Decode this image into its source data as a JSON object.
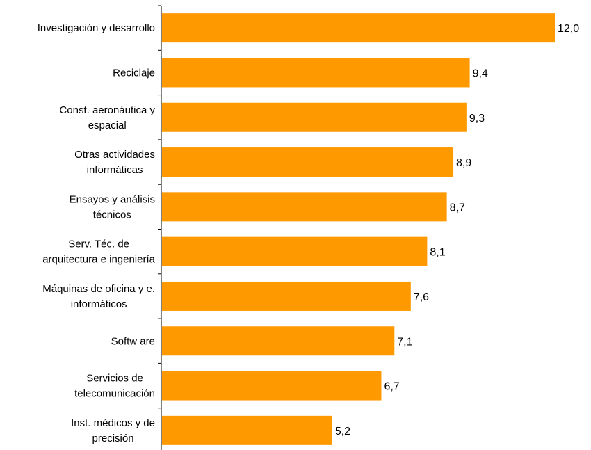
{
  "chart_data": {
    "type": "bar",
    "orientation": "horizontal",
    "title": "",
    "xlabel": "",
    "ylabel": "",
    "categories": [
      [
        "Investigación y desarrollo"
      ],
      [
        "Reciclaje"
      ],
      [
        "Const. aeronáutica y",
        "espacial"
      ],
      [
        "Otras actividades",
        "informáticas"
      ],
      [
        "Ensayos y análisis",
        "técnicos"
      ],
      [
        "Serv. Téc. de",
        "arquitectura e ingeniería"
      ],
      [
        "Máquinas de oficina y e.",
        "informáticos"
      ],
      [
        "Softw are"
      ],
      [
        "Servicios de",
        "telecomunicación"
      ],
      [
        "Inst. médicos y de",
        "precisión"
      ]
    ],
    "values": [
      12.0,
      9.4,
      9.3,
      8.9,
      8.7,
      8.1,
      7.6,
      7.1,
      6.7,
      5.2
    ],
    "value_labels": [
      "12,0",
      "9,4",
      "9,3",
      "8,9",
      "8,7",
      "8,1",
      "7,6",
      "7,1",
      "6,7",
      "5,2"
    ],
    "xlim": [
      0,
      12.0
    ],
    "bar_color": "#FF9900",
    "axis_color": "#000000",
    "grid": false,
    "legend": "none"
  }
}
